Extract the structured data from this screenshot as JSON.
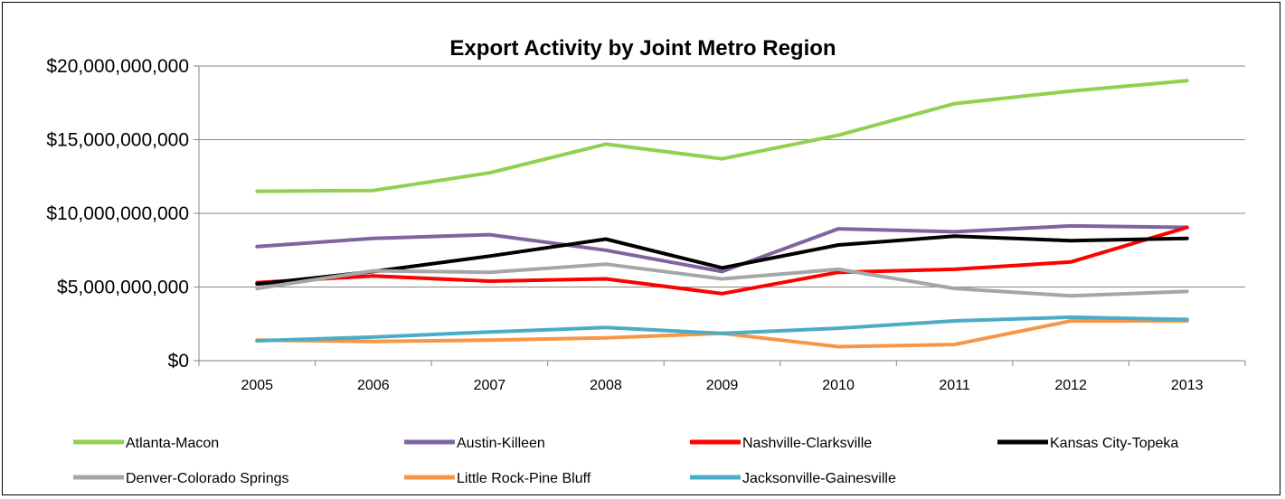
{
  "chart_data": {
    "type": "line",
    "title": "Export Activity by Joint Metro Region",
    "xlabel": "",
    "ylabel": "",
    "categories": [
      "2005",
      "2006",
      "2007",
      "2008",
      "2009",
      "2010",
      "2011",
      "2012",
      "2013"
    ],
    "ylim": [
      0,
      20000000000
    ],
    "yticks": [
      0,
      5000000000,
      10000000000,
      15000000000,
      20000000000
    ],
    "ytick_labels": [
      "$0",
      "$5,000,000,000",
      "$10,000,000,000",
      "$15,000,000,000",
      "$20,000,000,000"
    ],
    "grid": "horizontal major lines",
    "legend_position": "bottom",
    "series": [
      {
        "name": "Atlanta-Macon",
        "color": "#92D050",
        "values": [
          11500000000,
          11550000000,
          12750000000,
          14700000000,
          13700000000,
          15300000000,
          17450000000,
          18300000000,
          19000000000
        ]
      },
      {
        "name": "Austin-Killeen",
        "color": "#8064A2",
        "values": [
          7750000000,
          8300000000,
          8550000000,
          7500000000,
          6050000000,
          8950000000,
          8750000000,
          9150000000,
          9050000000
        ]
      },
      {
        "name": "Nashville-Clarksville",
        "color": "#FF0000",
        "values": [
          5300000000,
          5750000000,
          5400000000,
          5550000000,
          4550000000,
          6000000000,
          6200000000,
          6700000000,
          9050000000
        ]
      },
      {
        "name": "Kansas City-Topeka",
        "color": "#000000",
        "values": [
          5200000000,
          6050000000,
          7100000000,
          8250000000,
          6300000000,
          7850000000,
          8450000000,
          8150000000,
          8300000000
        ]
      },
      {
        "name": "Denver-Colorado Springs",
        "color": "#A6A6A6",
        "values": [
          4900000000,
          6100000000,
          6000000000,
          6550000000,
          5550000000,
          6200000000,
          4900000000,
          4400000000,
          4700000000
        ]
      },
      {
        "name": "Little Rock-Pine Bluff",
        "color": "#F79646",
        "values": [
          1400000000,
          1300000000,
          1400000000,
          1550000000,
          1850000000,
          950000000,
          1100000000,
          2700000000,
          2700000000
        ]
      },
      {
        "name": "Jacksonville-Gainesville",
        "color": "#4BACC6",
        "values": [
          1350000000,
          1600000000,
          1950000000,
          2250000000,
          1850000000,
          2200000000,
          2700000000,
          2950000000,
          2800000000
        ]
      }
    ]
  }
}
